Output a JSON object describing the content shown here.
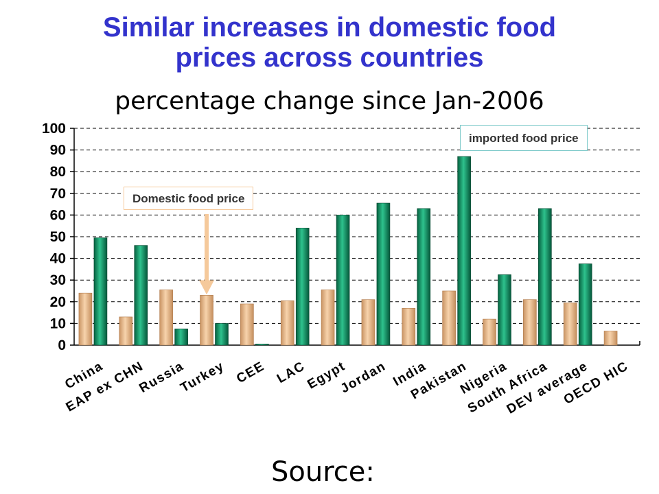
{
  "title_line1": "Similar increases in domestic food",
  "title_line2": "prices across countries",
  "subtitle": "percentage change since Jan-2006",
  "source": "Source:",
  "chart_data": {
    "type": "bar",
    "categories": [
      "China",
      "EAP ex CHN",
      "Russia",
      "Turkey",
      "CEE",
      "LAC",
      "Egypt",
      "Jordan",
      "India",
      "Pakistan",
      "Nigeria",
      "South Africa",
      "DEV average",
      "OECD HIC"
    ],
    "series": [
      {
        "name": "Domestic food price",
        "color": "#e8b98a",
        "values": [
          24,
          13,
          25.5,
          23,
          19,
          20.5,
          25.5,
          21,
          17,
          25,
          12,
          21,
          19.5,
          6.5
        ]
      },
      {
        "name": "imported food price",
        "color": "#0e9a6a",
        "values": [
          49.5,
          46,
          7.5,
          10,
          0.5,
          54,
          60,
          65.5,
          63,
          87,
          32.5,
          63,
          37.5,
          null
        ]
      }
    ],
    "ylim": [
      0,
      100
    ],
    "yticks": [
      0,
      10,
      20,
      30,
      40,
      50,
      60,
      70,
      80,
      90,
      100
    ],
    "grid": true,
    "annotations": [
      {
        "text": "Domestic food price",
        "arrow_to": "Turkey",
        "arrow_color": "#f5c99b"
      },
      {
        "text": "imported food price"
      }
    ]
  }
}
